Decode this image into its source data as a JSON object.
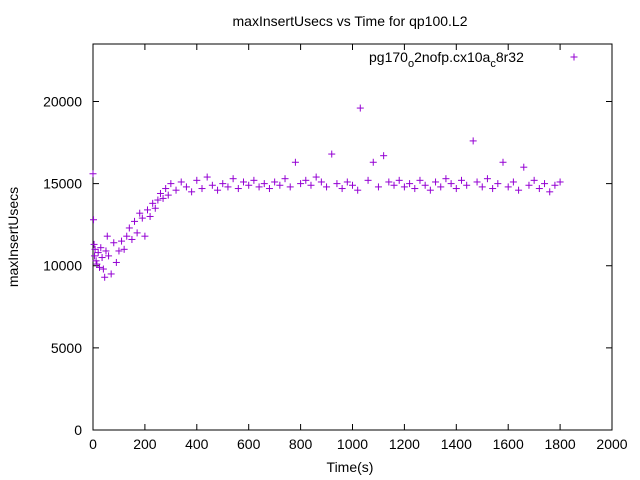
{
  "chart_data": {
    "type": "scatter",
    "title": "maxInsertUsecs vs Time for qp100.L2",
    "xlabel": "Time(s)",
    "ylabel": "maxInsertUsecs",
    "xlim": [
      0,
      2000
    ],
    "ylim": [
      0,
      23500
    ],
    "x_ticks": [
      "0",
      "200",
      "400",
      "600",
      "800",
      "1000",
      "1200",
      "1400",
      "1600",
      "1800",
      "2000"
    ],
    "y_ticks": [
      "0",
      "5000",
      "10000",
      "15000",
      "20000"
    ],
    "grid": false,
    "legend_position": "top-right",
    "colors": {
      "series": "#9400d3",
      "axis": "#000000"
    },
    "legend_label_parts": [
      "pg170",
      "o",
      "2nofp.cx10a",
      "c",
      "8r32"
    ],
    "series": [
      {
        "name": "pg170_o2nofp.cx10a_c8r32",
        "marker": "+",
        "points": [
          [
            0,
            15600
          ],
          [
            2,
            12800
          ],
          [
            4,
            11300
          ],
          [
            6,
            10600
          ],
          [
            8,
            11000
          ],
          [
            12,
            10300
          ],
          [
            15,
            10100
          ],
          [
            20,
            10800
          ],
          [
            25,
            9900
          ],
          [
            30,
            11100
          ],
          [
            35,
            10500
          ],
          [
            40,
            9800
          ],
          [
            45,
            9300
          ],
          [
            50,
            10900
          ],
          [
            55,
            11800
          ],
          [
            60,
            10600
          ],
          [
            70,
            9500
          ],
          [
            80,
            11400
          ],
          [
            90,
            10200
          ],
          [
            100,
            10900
          ],
          [
            110,
            11500
          ],
          [
            120,
            11000
          ],
          [
            130,
            11800
          ],
          [
            140,
            12300
          ],
          [
            150,
            11600
          ],
          [
            160,
            12700
          ],
          [
            170,
            12000
          ],
          [
            180,
            13200
          ],
          [
            190,
            12900
          ],
          [
            200,
            11800
          ],
          [
            210,
            13400
          ],
          [
            220,
            13000
          ],
          [
            230,
            13800
          ],
          [
            240,
            13500
          ],
          [
            250,
            14000
          ],
          [
            260,
            14400
          ],
          [
            270,
            14100
          ],
          [
            280,
            14700
          ],
          [
            290,
            14300
          ],
          [
            300,
            15000
          ],
          [
            320,
            14600
          ],
          [
            340,
            15100
          ],
          [
            360,
            14800
          ],
          [
            380,
            14500
          ],
          [
            400,
            15200
          ],
          [
            420,
            14700
          ],
          [
            440,
            15400
          ],
          [
            460,
            14900
          ],
          [
            480,
            14600
          ],
          [
            500,
            15000
          ],
          [
            520,
            14800
          ],
          [
            540,
            15300
          ],
          [
            560,
            14700
          ],
          [
            580,
            15100
          ],
          [
            600,
            14900
          ],
          [
            620,
            15200
          ],
          [
            640,
            14800
          ],
          [
            660,
            15000
          ],
          [
            680,
            14700
          ],
          [
            700,
            15100
          ],
          [
            720,
            14900
          ],
          [
            740,
            15300
          ],
          [
            760,
            14800
          ],
          [
            780,
            16300
          ],
          [
            800,
            15000
          ],
          [
            820,
            15200
          ],
          [
            840,
            14900
          ],
          [
            860,
            15400
          ],
          [
            880,
            15100
          ],
          [
            900,
            14800
          ],
          [
            920,
            16800
          ],
          [
            940,
            15000
          ],
          [
            960,
            14700
          ],
          [
            980,
            15100
          ],
          [
            1000,
            14900
          ],
          [
            1020,
            14600
          ],
          [
            1030,
            19600
          ],
          [
            1060,
            15200
          ],
          [
            1080,
            16300
          ],
          [
            1100,
            14800
          ],
          [
            1120,
            16700
          ],
          [
            1140,
            15100
          ],
          [
            1160,
            14900
          ],
          [
            1180,
            15200
          ],
          [
            1200,
            14800
          ],
          [
            1220,
            15000
          ],
          [
            1240,
            14700
          ],
          [
            1260,
            15200
          ],
          [
            1280,
            14900
          ],
          [
            1300,
            14600
          ],
          [
            1320,
            15100
          ],
          [
            1340,
            14800
          ],
          [
            1360,
            15300
          ],
          [
            1380,
            15000
          ],
          [
            1400,
            14700
          ],
          [
            1420,
            15200
          ],
          [
            1440,
            14900
          ],
          [
            1465,
            17600
          ],
          [
            1480,
            15100
          ],
          [
            1500,
            14800
          ],
          [
            1520,
            15300
          ],
          [
            1540,
            14700
          ],
          [
            1560,
            15000
          ],
          [
            1580,
            16300
          ],
          [
            1600,
            14800
          ],
          [
            1620,
            15100
          ],
          [
            1640,
            14600
          ],
          [
            1660,
            16000
          ],
          [
            1680,
            14900
          ],
          [
            1700,
            15200
          ],
          [
            1720,
            14700
          ],
          [
            1740,
            15000
          ],
          [
            1760,
            14500
          ],
          [
            1780,
            14900
          ],
          [
            1800,
            15100
          ]
        ]
      }
    ]
  }
}
